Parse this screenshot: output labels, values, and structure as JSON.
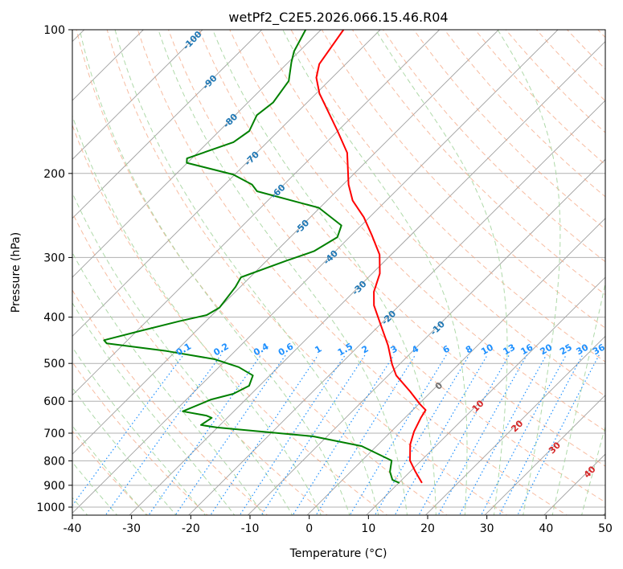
{
  "chart_data": {
    "type": "line",
    "subtype": "skew-t log-p",
    "title": "wetPf2_C2E5.2026.066.15.46.R04",
    "xlabel": "Temperature (°C)",
    "ylabel": "Pressure (hPa)",
    "xlim": [
      -40,
      50
    ],
    "ylim": [
      1050,
      100
    ],
    "xticks": [
      -40,
      -30,
      -20,
      -10,
      0,
      10,
      20,
      30,
      40,
      50
    ],
    "yticks": [
      100,
      200,
      300,
      400,
      500,
      600,
      700,
      800,
      900,
      1000
    ],
    "grid": true,
    "colors": {
      "temperature": "#ff0000",
      "dewpoint": "#008000",
      "isotherm": "#a0a0a0",
      "dry_adiabat": "#f4a582",
      "moist_adiabat": "#a6d5a0",
      "mixing_ratio": "#1e90ff",
      "label_cold": "#1f77b4",
      "label_zero": "#707070",
      "label_warm": "#d62728"
    },
    "isotherm_labels": [
      -100,
      -90,
      -80,
      -70,
      -60,
      -50,
      -40,
      -30,
      -20,
      -10,
      0,
      10,
      20,
      30,
      40
    ],
    "mixing_ratio_labels": [
      "0.1",
      "0.2",
      "0.4",
      "0.6",
      "1",
      "1.5",
      "2",
      "3",
      "4",
      "6",
      "8",
      "10",
      "13",
      "16",
      "20",
      "25",
      "30",
      "36"
    ],
    "series": [
      {
        "name": "Temperature",
        "pressure": [
          100,
          118,
          126,
          136,
          163,
          181,
          211,
          228,
          247,
          270,
          296,
          324,
          354,
          378,
          413,
          459,
          502,
          530,
          572,
          609,
          626,
          650,
          695,
          739,
          799,
          843,
          890
        ],
        "values": [
          -76.2,
          -74.5,
          -72.7,
          -69.5,
          -60.1,
          -54.8,
          -49.2,
          -45.8,
          -41.1,
          -36.6,
          -32.1,
          -28.9,
          -26.8,
          -24.5,
          -20.3,
          -15.3,
          -11.5,
          -8.9,
          -3.9,
          0.0,
          1.9,
          2.4,
          3.6,
          5.1,
          7.8,
          10.6,
          13.6
        ]
      },
      {
        "name": "Dewpoint",
        "pressure": [
          100,
          111,
          117,
          128,
          142,
          151,
          163,
          172,
          186,
          190,
          201,
          211,
          218,
          236,
          257,
          272,
          291,
          305,
          330,
          346,
          382,
          396,
          408,
          428,
          447,
          454,
          471,
          490,
          509,
          530,
          557,
          579,
          595,
          630,
          643,
          650,
          673,
          681,
          711,
          745,
          799,
          843,
          877,
          890
        ],
        "values": [
          -82.6,
          -80.9,
          -79.5,
          -76.8,
          -75.8,
          -76.4,
          -75.0,
          -75.8,
          -80.9,
          -80.2,
          -70.4,
          -65.5,
          -63.5,
          -50.3,
          -43.5,
          -42.2,
          -43.8,
          -46.9,
          -51.7,
          -51.0,
          -50.2,
          -51.1,
          -54.7,
          -59.8,
          -64.2,
          -63.2,
          -51.8,
          -42.3,
          -36.9,
          -33.1,
          -32.0,
          -33.3,
          -36.1,
          -38.9,
          -34.2,
          -32.9,
          -33.5,
          -30.4,
          -12.6,
          -2.8,
          4.7,
          6.3,
          8.1,
          9.8
        ]
      }
    ]
  }
}
